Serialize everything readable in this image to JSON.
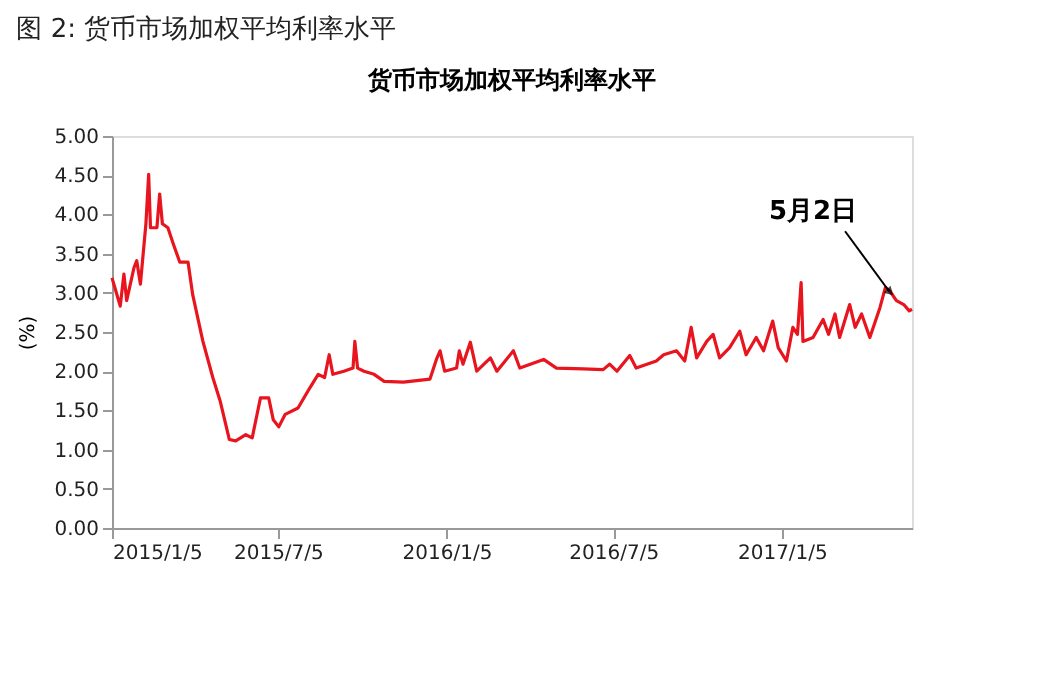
{
  "chart_data": {
    "type": "line",
    "title": "图 2: 货币市场加权平均利率水平",
    "subtitle": "货币市场加权平均利率水平",
    "ylabel": "(%)",
    "x": [
      "2015-01-05",
      "2015-01-08",
      "2015-01-14",
      "2015-01-18",
      "2015-01-21",
      "2015-01-29",
      "2015-02-01",
      "2015-02-05",
      "2015-02-11",
      "2015-02-14",
      "2015-02-16",
      "2015-02-23",
      "2015-02-26",
      "2015-03-01",
      "2015-03-07",
      "2015-03-13",
      "2015-03-20",
      "2015-03-29",
      "2015-04-03",
      "2015-04-14",
      "2015-04-25",
      "2015-05-03",
      "2015-05-13",
      "2015-05-20",
      "2015-05-31",
      "2015-06-07",
      "2015-06-16",
      "2015-06-25",
      "2015-06-30",
      "2015-07-06",
      "2015-07-13",
      "2015-07-27",
      "2015-08-07",
      "2015-08-18",
      "2015-08-25",
      "2015-08-30",
      "2015-09-03",
      "2015-09-15",
      "2015-09-25",
      "2015-09-27",
      "2015-09-30",
      "2015-10-07",
      "2015-10-18",
      "2015-10-29",
      "2015-11-19",
      "2015-12-18",
      "2015-12-25",
      "2015-12-29",
      "2016-01-03",
      "2016-01-16",
      "2016-01-19",
      "2016-01-23",
      "2016-01-31",
      "2016-02-07",
      "2016-02-22",
      "2016-02-29",
      "2016-03-18",
      "2016-03-25",
      "2016-04-20",
      "2016-05-04",
      "2016-06-02",
      "2016-06-24",
      "2016-07-01",
      "2016-07-09",
      "2016-07-23",
      "2016-07-30",
      "2016-08-21",
      "2016-08-29",
      "2016-09-12",
      "2016-09-21",
      "2016-09-28",
      "2016-10-04",
      "2016-10-15",
      "2016-10-22",
      "2016-10-29",
      "2016-11-09",
      "2016-11-20",
      "2016-11-27",
      "2016-12-08",
      "2016-12-16",
      "2016-12-26",
      "2017-01-01",
      "2017-01-10",
      "2017-01-17",
      "2017-01-22",
      "2017-01-26",
      "2017-01-28",
      "2017-02-08",
      "2017-02-19",
      "2017-02-25",
      "2017-03-04",
      "2017-03-09",
      "2017-03-20",
      "2017-03-26",
      "2017-04-02",
      "2017-04-11",
      "2017-04-22",
      "2017-04-28",
      "2017-05-03",
      "2017-05-10",
      "2017-05-18",
      "2017-05-24",
      "2017-05-27"
    ],
    "series": [
      {
        "color": "#e8141e",
        "values": [
          3.19,
          3.07,
          2.83,
          3.24,
          2.9,
          3.32,
          3.41,
          3.11,
          3.88,
          4.51,
          3.83,
          3.83,
          4.26,
          3.88,
          3.83,
          3.62,
          3.39,
          3.39,
          2.98,
          2.39,
          1.92,
          1.62,
          1.13,
          1.11,
          1.19,
          1.15,
          1.66,
          1.66,
          1.38,
          1.29,
          1.45,
          1.53,
          1.75,
          1.96,
          1.92,
          2.21,
          1.96,
          2.0,
          2.04,
          2.38,
          2.04,
          2.0,
          1.96,
          1.87,
          1.86,
          1.9,
          2.15,
          2.26,
          2.0,
          2.04,
          2.26,
          2.09,
          2.37,
          2.0,
          2.17,
          2.0,
          2.26,
          2.04,
          2.15,
          2.04,
          2.03,
          2.02,
          2.09,
          2.0,
          2.2,
          2.04,
          2.13,
          2.21,
          2.26,
          2.13,
          2.56,
          2.17,
          2.38,
          2.47,
          2.17,
          2.3,
          2.51,
          2.21,
          2.43,
          2.26,
          2.64,
          2.3,
          2.13,
          2.56,
          2.47,
          3.13,
          2.38,
          2.43,
          2.66,
          2.47,
          2.73,
          2.43,
          2.85,
          2.56,
          2.73,
          2.43,
          2.81,
          3.07,
          3.02,
          2.9,
          2.85,
          2.77,
          2.79
        ]
      }
    ],
    "xlim": [
      "2015-01-05",
      "2017-05-27"
    ],
    "xticks": [
      {
        "value": "2015-01-05",
        "label": "2015/1/5"
      },
      {
        "value": "2015-07-05",
        "label": "2015/7/5"
      },
      {
        "value": "2016-01-05",
        "label": "2016/1/5"
      },
      {
        "value": "2016-07-05",
        "label": "2016/7/5"
      },
      {
        "value": "2017-01-05",
        "label": "2017/1/5"
      }
    ],
    "ylim": [
      0,
      5
    ],
    "yticks": [
      {
        "value": 0,
        "label": "0.00"
      },
      {
        "value": 0.5,
        "label": "0.50"
      },
      {
        "value": 1,
        "label": "1.00"
      },
      {
        "value": 1.5,
        "label": "1.50"
      },
      {
        "value": 2,
        "label": "2.00"
      },
      {
        "value": 2.5,
        "label": "2.50"
      },
      {
        "value": 3,
        "label": "3.00"
      },
      {
        "value": 3.5,
        "label": "3.50"
      },
      {
        "value": 4,
        "label": "4.00"
      },
      {
        "value": 4.5,
        "label": "4.50"
      },
      {
        "value": 5,
        "label": "5.00"
      }
    ],
    "annotations": [
      {
        "text": "5月2日",
        "x": "2017-05-02",
        "y": 3.02
      }
    ],
    "grid": false,
    "marker": "none",
    "line_style": "solid"
  }
}
